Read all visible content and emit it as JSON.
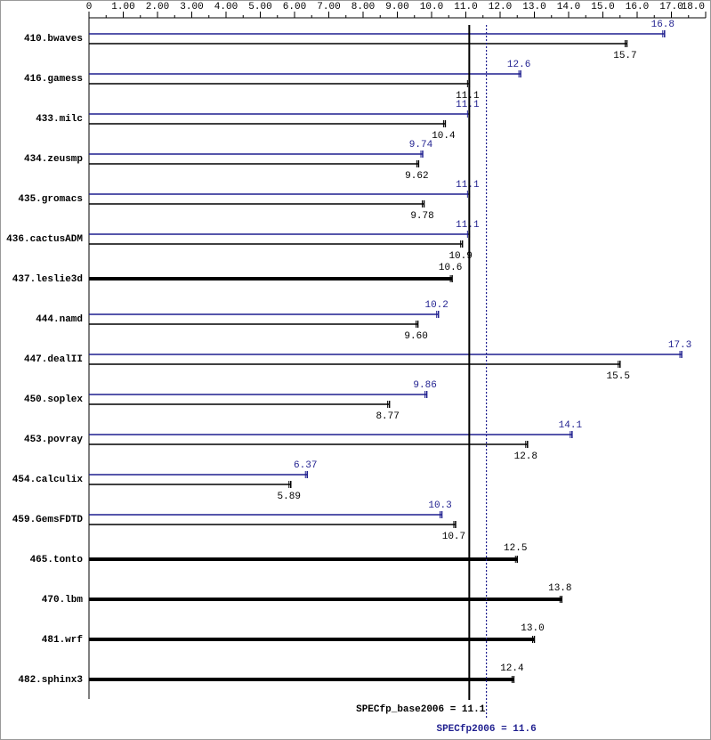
{
  "chart_data": {
    "type": "bar",
    "categories": [
      "410.bwaves",
      "416.gamess",
      "433.milc",
      "434.zeusmp",
      "435.gromacs",
      "436.cactusADM",
      "437.leslie3d",
      "444.namd",
      "447.dealII",
      "450.soplex",
      "453.povray",
      "454.calculix",
      "459.GemsFDTD",
      "465.tonto",
      "470.lbm",
      "481.wrf",
      "482.sphinx3"
    ],
    "series": [
      {
        "color": "#000000",
        "values": [
          15.7,
          11.1,
          10.4,
          9.62,
          9.78,
          10.9,
          10.6,
          9.6,
          15.5,
          8.77,
          12.8,
          5.89,
          10.7,
          12.5,
          13.8,
          13.0,
          12.4
        ],
        "value_labels": [
          "15.7",
          "11.1",
          "10.4",
          "9.62",
          "9.78",
          "10.9",
          "10.6",
          "9.60",
          "15.5",
          "8.77",
          "12.8",
          "5.89",
          "10.7",
          "12.5",
          "13.8",
          "13.0",
          "12.4"
        ]
      },
      {
        "color": "#1f1f8f",
        "values": [
          16.8,
          12.6,
          11.1,
          9.74,
          11.1,
          11.1,
          null,
          10.2,
          17.3,
          9.86,
          14.1,
          6.37,
          10.3,
          null,
          null,
          null,
          null
        ]
      }
    ],
    "xlim": [
      0,
      18
    ],
    "xticks": [
      0,
      {
        "value": 1,
        "label": "1.00"
      },
      {
        "value": 2,
        "label": "2.00"
      },
      {
        "value": 3,
        "label": "3.00"
      },
      {
        "value": 4,
        "label": "4.00"
      },
      {
        "value": 5,
        "label": "5.00"
      },
      {
        "value": 6,
        "label": "6.00"
      },
      {
        "value": 7,
        "label": "7.00"
      },
      {
        "value": 8,
        "label": "8.00"
      },
      {
        "value": 9,
        "label": "9.00"
      },
      {
        "value": 10,
        "label": "10.0"
      },
      {
        "value": 11,
        "label": "11.0"
      },
      {
        "value": 12,
        "label": "12.0"
      },
      {
        "value": 13,
        "label": "13.0"
      },
      {
        "value": 14,
        "label": "14.0"
      },
      {
        "value": 15,
        "label": "15.0"
      },
      {
        "value": 16,
        "label": "16.0"
      },
      {
        "value": 17,
        "label": "17.0"
      },
      {
        "value": 18,
        "label": "18.0"
      }
    ],
    "reference_lines": [
      {
        "label": "SPECfp_base2006 = 11.1",
        "value": 11.1,
        "color": "#000000",
        "style": "solid"
      },
      {
        "label": "SPECfp2006 = 11.6",
        "value": 11.6,
        "color": "#1f1f8f",
        "style": "dotted"
      }
    ]
  }
}
